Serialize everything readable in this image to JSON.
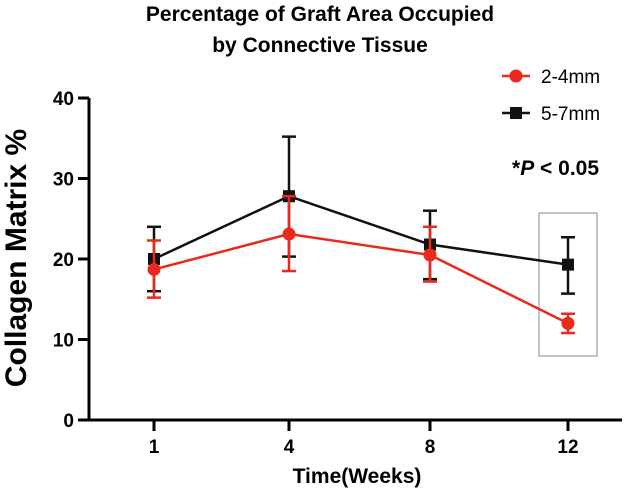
{
  "chart_data": {
    "type": "line",
    "title": "Percentage of Graft Area Occupied",
    "subtitle": "by Connective Tissue",
    "xlabel": "Time(Weeks)",
    "ylabel": "Collagen Matrix %",
    "categories": [
      "1",
      "4",
      "8",
      "12"
    ],
    "ylim": [
      0,
      40
    ],
    "yticks": [
      "0",
      "10",
      "20",
      "30",
      "40"
    ],
    "grid": false,
    "legend_position": "top-right",
    "series": [
      {
        "name": "2-4mm",
        "color": "#e8291c",
        "marker": "circle",
        "values": [
          18.7,
          23.1,
          20.5,
          12.0
        ],
        "error_low": [
          15.2,
          18.5,
          17.2,
          10.8
        ],
        "error_high": [
          22.3,
          27.8,
          24.0,
          13.2
        ]
      },
      {
        "name": "5-7mm",
        "color": "#111111",
        "marker": "square",
        "values": [
          20.0,
          27.8,
          21.8,
          19.3
        ],
        "error_low": [
          16.0,
          20.3,
          17.5,
          15.7
        ],
        "error_high": [
          24.0,
          35.2,
          26.0,
          22.7
        ]
      }
    ],
    "annotation": {
      "prefix": "*",
      "italic": "P",
      "suffix": " < 0.05"
    }
  }
}
